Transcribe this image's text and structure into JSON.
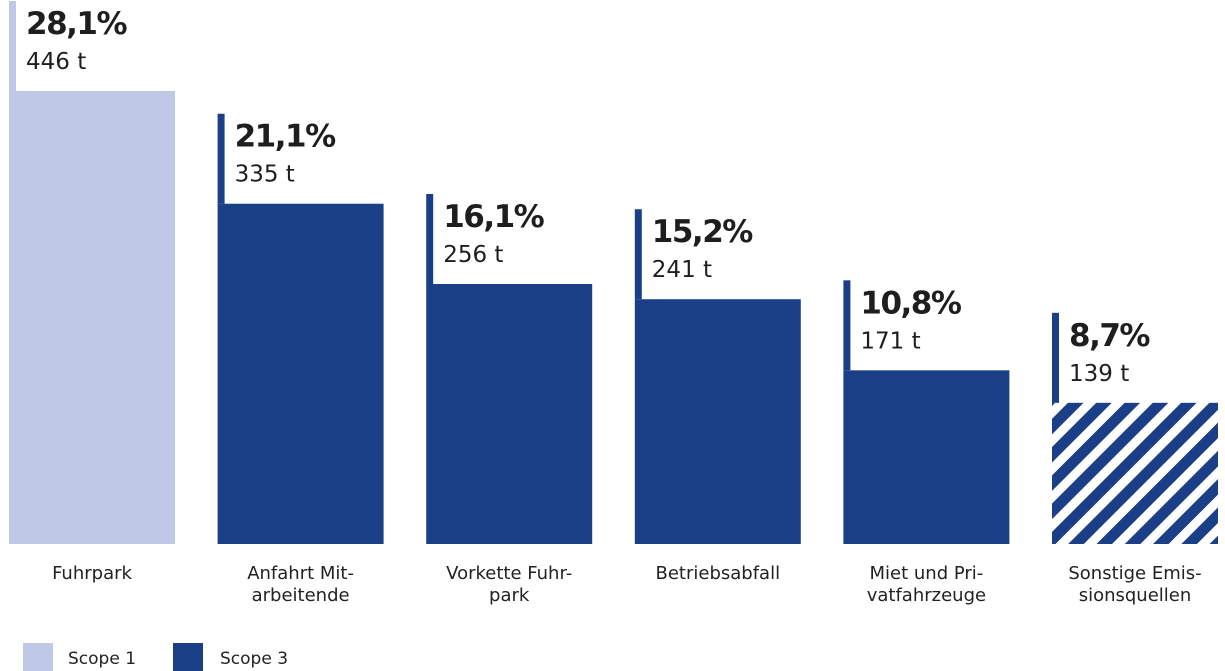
{
  "chart_data": {
    "type": "bar",
    "categories": [
      [
        "Fuhrpark"
      ],
      [
        "Anfahrt Mit-",
        "arbeitende"
      ],
      [
        "Vorkette Fuhr-",
        "park"
      ],
      [
        "Betriebsabfall"
      ],
      [
        "Miet und Pri-",
        "vatfahrzeuge"
      ],
      [
        "Sonstige Emis-",
        "sionsquellen"
      ]
    ],
    "values": [
      446,
      335,
      256,
      241,
      171,
      139
    ],
    "percent_labels": [
      "28,1%",
      "21,1%",
      "16,1%",
      "15,2%",
      "10,8%",
      "8,7%"
    ],
    "value_labels": [
      "446 t",
      "335 t",
      "256 t",
      "241 t",
      "171 t",
      "139 t"
    ],
    "scope": [
      1,
      3,
      3,
      3,
      3,
      3
    ],
    "fill_style": [
      "solid",
      "solid",
      "solid",
      "solid",
      "solid",
      "striped"
    ],
    "unit": "t",
    "ylim": [
      0,
      446
    ],
    "legend": [
      {
        "label": "Scope 1",
        "color": "#bfc8e6"
      },
      {
        "label": "Scope 3",
        "color": "#1b3f87"
      }
    ],
    "legend_position": "bottom-left",
    "grid": false
  },
  "colors": {
    "scope1": "#bfc8e6",
    "scope3": "#1b3f87",
    "text": "#1e1e1e"
  }
}
